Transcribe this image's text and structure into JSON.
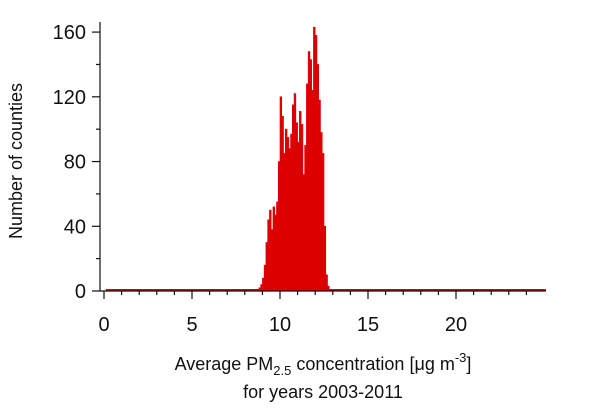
{
  "chart_data": {
    "type": "bar",
    "xlabel_main": "Average PM",
    "xlabel_sub": "2.5",
    "xlabel_mid": " concentration [",
    "xlabel_mu": "μ",
    "xlabel_unit": "g m",
    "xlabel_sup": "-3",
    "xlabel_end": "]",
    "xlabel_line2": "for years 2003-2011",
    "ylabel": "Number of counties",
    "xlim": [
      -0.2,
      24.8
    ],
    "ylim": [
      0,
      165
    ],
    "xticks": [
      0,
      5,
      10,
      15,
      20
    ],
    "yticks": [
      0,
      40,
      80,
      120,
      160
    ],
    "bin_width": 0.1,
    "colors": {
      "bars": "#dd0000",
      "axis": "#111111"
    },
    "bins": [
      {
        "x": 8.8,
        "y": 2
      },
      {
        "x": 8.9,
        "y": 4
      },
      {
        "x": 9.0,
        "y": 8
      },
      {
        "x": 9.1,
        "y": 16
      },
      {
        "x": 9.2,
        "y": 30
      },
      {
        "x": 9.3,
        "y": 44
      },
      {
        "x": 9.4,
        "y": 50
      },
      {
        "x": 9.5,
        "y": 38
      },
      {
        "x": 9.6,
        "y": 52
      },
      {
        "x": 9.7,
        "y": 47
      },
      {
        "x": 9.8,
        "y": 55
      },
      {
        "x": 9.9,
        "y": 80
      },
      {
        "x": 10.0,
        "y": 120
      },
      {
        "x": 10.1,
        "y": 108
      },
      {
        "x": 10.2,
        "y": 85
      },
      {
        "x": 10.3,
        "y": 100
      },
      {
        "x": 10.4,
        "y": 95
      },
      {
        "x": 10.5,
        "y": 88
      },
      {
        "x": 10.6,
        "y": 97
      },
      {
        "x": 10.7,
        "y": 115
      },
      {
        "x": 10.8,
        "y": 122
      },
      {
        "x": 10.9,
        "y": 104
      },
      {
        "x": 11.0,
        "y": 92
      },
      {
        "x": 11.1,
        "y": 111
      },
      {
        "x": 11.2,
        "y": 103
      },
      {
        "x": 11.3,
        "y": 72
      },
      {
        "x": 11.4,
        "y": 90
      },
      {
        "x": 11.5,
        "y": 128
      },
      {
        "x": 11.6,
        "y": 148
      },
      {
        "x": 11.7,
        "y": 143
      },
      {
        "x": 11.8,
        "y": 124
      },
      {
        "x": 11.9,
        "y": 163
      },
      {
        "x": 12.0,
        "y": 158
      },
      {
        "x": 12.1,
        "y": 140
      },
      {
        "x": 12.2,
        "y": 118
      },
      {
        "x": 12.3,
        "y": 98
      },
      {
        "x": 12.4,
        "y": 85
      },
      {
        "x": 12.5,
        "y": 40
      },
      {
        "x": 12.6,
        "y": 10
      },
      {
        "x": 12.7,
        "y": 3
      }
    ]
  }
}
